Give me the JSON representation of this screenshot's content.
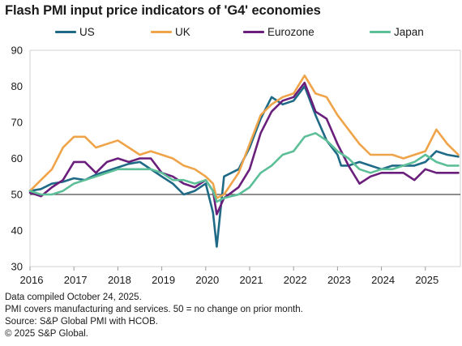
{
  "title": "Flash PMI input price indicators of 'G4' economies",
  "legend": [
    {
      "name": "US",
      "color": "#1e6a87"
    },
    {
      "name": "UK",
      "color": "#f0a44a"
    },
    {
      "name": "Eurozone",
      "color": "#6b1f7c"
    },
    {
      "name": "Japan",
      "color": "#5cbf98"
    }
  ],
  "footnotes": {
    "line1": "Data compiled October 24, 2025.",
    "line2": "PMI covers manufacturing and services. 50 = no change on prior month.",
    "line3": "Source: S&P Global PMI with HCOB.",
    "line4": "© 2025 S&P Global."
  },
  "chart_data": {
    "type": "line",
    "title": "Flash PMI input price indicators of 'G4' economies",
    "x_ticks": [
      "2016",
      "2017",
      "2018",
      "2019",
      "2020",
      "2021",
      "2022",
      "2023",
      "2024",
      "2025"
    ],
    "ylim": [
      30,
      90
    ],
    "y_ticks": [
      30,
      40,
      50,
      60,
      70,
      80,
      90
    ],
    "reference_line": 50,
    "grid": false,
    "legend_position": "top",
    "x_range": [
      "2016-01",
      "2025-10"
    ],
    "series": [
      {
        "name": "US",
        "color": "#1e6a87",
        "points": [
          [
            "2016-01",
            51
          ],
          [
            "2016-04",
            51.5
          ],
          [
            "2016-07",
            53
          ],
          [
            "2016-10",
            53.5
          ],
          [
            "2017-01",
            54.5
          ],
          [
            "2017-04",
            54
          ],
          [
            "2017-07",
            55.5
          ],
          [
            "2017-10",
            56.5
          ],
          [
            "2018-01",
            57.5
          ],
          [
            "2018-04",
            58.5
          ],
          [
            "2018-07",
            59
          ],
          [
            "2018-10",
            57
          ],
          [
            "2019-01",
            55
          ],
          [
            "2019-04",
            53
          ],
          [
            "2019-07",
            50
          ],
          [
            "2019-10",
            51
          ],
          [
            "2020-01",
            53
          ],
          [
            "2020-03",
            45
          ],
          [
            "2020-04",
            35.5
          ],
          [
            "2020-06",
            55
          ],
          [
            "2020-10",
            57
          ],
          [
            "2021-01",
            63
          ],
          [
            "2021-04",
            71
          ],
          [
            "2021-07",
            77
          ],
          [
            "2021-10",
            75
          ],
          [
            "2022-01",
            76
          ],
          [
            "2022-04",
            80
          ],
          [
            "2022-07",
            72
          ],
          [
            "2022-10",
            65
          ],
          [
            "2023-01",
            61
          ],
          [
            "2023-02",
            58
          ],
          [
            "2023-04",
            58
          ],
          [
            "2023-07",
            59
          ],
          [
            "2023-10",
            58
          ],
          [
            "2024-01",
            57
          ],
          [
            "2024-04",
            58
          ],
          [
            "2024-07",
            58
          ],
          [
            "2024-10",
            58
          ],
          [
            "2025-01",
            59
          ],
          [
            "2025-04",
            62
          ],
          [
            "2025-07",
            61
          ],
          [
            "2025-10",
            60.5
          ]
        ]
      },
      {
        "name": "UK",
        "color": "#f0a44a",
        "points": [
          [
            "2016-01",
            51
          ],
          [
            "2016-04",
            54
          ],
          [
            "2016-07",
            57
          ],
          [
            "2016-10",
            63
          ],
          [
            "2017-01",
            66
          ],
          [
            "2017-04",
            66
          ],
          [
            "2017-07",
            63
          ],
          [
            "2017-10",
            64
          ],
          [
            "2018-01",
            65
          ],
          [
            "2018-04",
            63
          ],
          [
            "2018-07",
            61
          ],
          [
            "2018-10",
            62
          ],
          [
            "2019-01",
            61
          ],
          [
            "2019-04",
            60
          ],
          [
            "2019-07",
            58
          ],
          [
            "2019-10",
            57
          ],
          [
            "2020-01",
            55
          ],
          [
            "2020-03",
            53
          ],
          [
            "2020-04",
            49
          ],
          [
            "2020-06",
            50
          ],
          [
            "2020-10",
            56
          ],
          [
            "2021-01",
            64
          ],
          [
            "2021-04",
            72
          ],
          [
            "2021-07",
            75
          ],
          [
            "2021-10",
            77
          ],
          [
            "2022-01",
            78
          ],
          [
            "2022-04",
            83
          ],
          [
            "2022-07",
            78
          ],
          [
            "2022-10",
            77
          ],
          [
            "2023-01",
            72
          ],
          [
            "2023-04",
            68
          ],
          [
            "2023-07",
            64
          ],
          [
            "2023-10",
            61
          ],
          [
            "2024-01",
            61
          ],
          [
            "2024-04",
            61
          ],
          [
            "2024-07",
            60
          ],
          [
            "2024-10",
            61
          ],
          [
            "2025-01",
            62
          ],
          [
            "2025-04",
            68
          ],
          [
            "2025-07",
            64
          ],
          [
            "2025-10",
            61
          ]
        ]
      },
      {
        "name": "Eurozone",
        "color": "#6b1f7c",
        "points": [
          [
            "2016-01",
            50.5
          ],
          [
            "2016-04",
            49.5
          ],
          [
            "2016-07",
            52
          ],
          [
            "2016-10",
            54
          ],
          [
            "2017-01",
            59
          ],
          [
            "2017-04",
            59
          ],
          [
            "2017-07",
            56
          ],
          [
            "2017-10",
            59
          ],
          [
            "2018-01",
            60
          ],
          [
            "2018-04",
            59
          ],
          [
            "2018-07",
            60
          ],
          [
            "2018-10",
            60
          ],
          [
            "2019-01",
            56
          ],
          [
            "2019-04",
            55
          ],
          [
            "2019-07",
            53
          ],
          [
            "2019-10",
            52
          ],
          [
            "2020-01",
            54
          ],
          [
            "2020-03",
            51
          ],
          [
            "2020-04",
            44.5
          ],
          [
            "2020-06",
            49
          ],
          [
            "2020-10",
            52
          ],
          [
            "2021-01",
            57
          ],
          [
            "2021-04",
            67
          ],
          [
            "2021-07",
            73
          ],
          [
            "2021-10",
            76
          ],
          [
            "2022-01",
            77
          ],
          [
            "2022-04",
            81
          ],
          [
            "2022-07",
            73
          ],
          [
            "2022-10",
            71
          ],
          [
            "2023-01",
            64
          ],
          [
            "2023-04",
            58
          ],
          [
            "2023-07",
            53
          ],
          [
            "2023-10",
            55
          ],
          [
            "2024-01",
            56
          ],
          [
            "2024-04",
            56
          ],
          [
            "2024-07",
            56
          ],
          [
            "2024-10",
            54
          ],
          [
            "2025-01",
            57
          ],
          [
            "2025-04",
            56
          ],
          [
            "2025-07",
            56
          ],
          [
            "2025-10",
            56
          ]
        ]
      },
      {
        "name": "Japan",
        "color": "#5cbf98",
        "points": [
          [
            "2016-01",
            51
          ],
          [
            "2016-04",
            50
          ],
          [
            "2016-07",
            50
          ],
          [
            "2016-10",
            51
          ],
          [
            "2017-01",
            53
          ],
          [
            "2017-04",
            54
          ],
          [
            "2017-07",
            55
          ],
          [
            "2017-10",
            56
          ],
          [
            "2018-01",
            57
          ],
          [
            "2018-04",
            57
          ],
          [
            "2018-07",
            57
          ],
          [
            "2018-10",
            57
          ],
          [
            "2019-01",
            56
          ],
          [
            "2019-04",
            54
          ],
          [
            "2019-07",
            54
          ],
          [
            "2019-10",
            53
          ],
          [
            "2020-01",
            54
          ],
          [
            "2020-03",
            51
          ],
          [
            "2020-04",
            48
          ],
          [
            "2020-06",
            49
          ],
          [
            "2020-10",
            50
          ],
          [
            "2021-01",
            52
          ],
          [
            "2021-04",
            56
          ],
          [
            "2021-07",
            58
          ],
          [
            "2021-10",
            61
          ],
          [
            "2022-01",
            62
          ],
          [
            "2022-04",
            66
          ],
          [
            "2022-07",
            67
          ],
          [
            "2022-10",
            65
          ],
          [
            "2023-01",
            62
          ],
          [
            "2023-04",
            60
          ],
          [
            "2023-07",
            57
          ],
          [
            "2023-10",
            56
          ],
          [
            "2024-01",
            57
          ],
          [
            "2024-04",
            57
          ],
          [
            "2024-07",
            58
          ],
          [
            "2024-10",
            59
          ],
          [
            "2025-01",
            61
          ],
          [
            "2025-04",
            59
          ],
          [
            "2025-07",
            58
          ],
          [
            "2025-10",
            58
          ]
        ]
      }
    ]
  }
}
